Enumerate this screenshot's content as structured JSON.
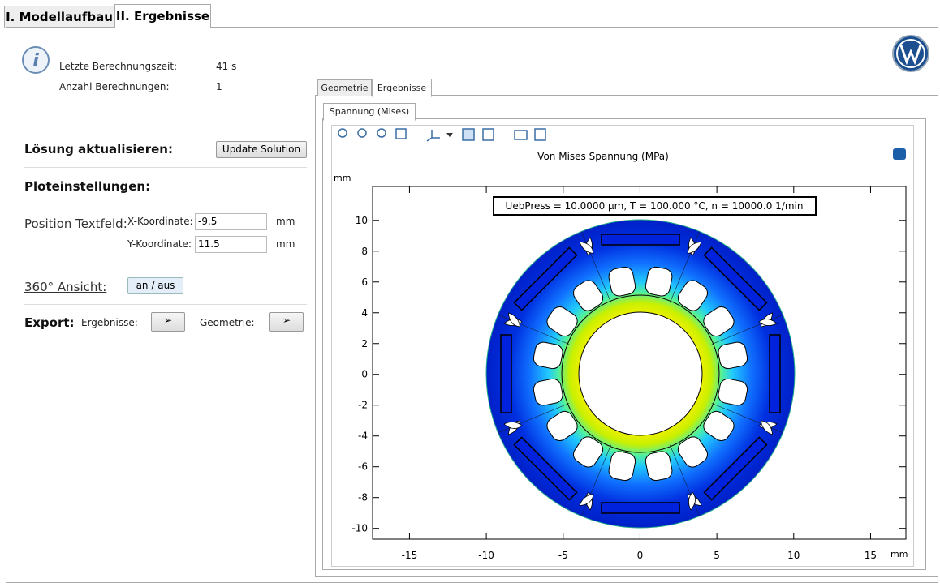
{
  "tabs": [
    "I. Modellaufbau",
    "II. Ergebnisse"
  ],
  "info": {
    "time_label": "Letzte Berechnungszeit:",
    "time_value": "41 s",
    "count_label": "Anzahl Berechnungen:",
    "count_value": "1"
  },
  "update": {
    "heading": "Lösung aktualisieren:",
    "button": "Update Solution"
  },
  "plot_settings": {
    "heading": "Ploteinstellungen:",
    "position_label": "Position Textfeld:",
    "x_label": "X-Koordinate:",
    "x_value": "-9.5",
    "x_unit": "mm",
    "y_label": "Y-Koordinate:",
    "y_value": "11.5",
    "y_unit": "mm"
  },
  "view": {
    "label": "360° Ansicht:",
    "button": "an / aus"
  },
  "export": {
    "heading": "Export:",
    "results_label": "Ergebnisse:",
    "geometry_label": "Geometrie:"
  },
  "inner_tabs": [
    "Geometrie",
    "Ergebnisse"
  ],
  "plot_tab": "Spannung (Mises)",
  "chart_data": {
    "type": "contour",
    "title": "Von Mises Spannung (MPa)",
    "annotation": "UebPress = 10.0000 µm, T = 100.000 °C, n = 10000.0  1/min",
    "x_label": "mm",
    "y_label": "mm",
    "xlim": [
      -17.4,
      17.3
    ],
    "ylim": [
      -10.7,
      12.2
    ],
    "xticks": [
      -15,
      -10,
      -5,
      0,
      5,
      10,
      15
    ],
    "yticks": [
      -10,
      -8,
      -6,
      -4,
      -2,
      0,
      2,
      4,
      6,
      8,
      10
    ]
  }
}
